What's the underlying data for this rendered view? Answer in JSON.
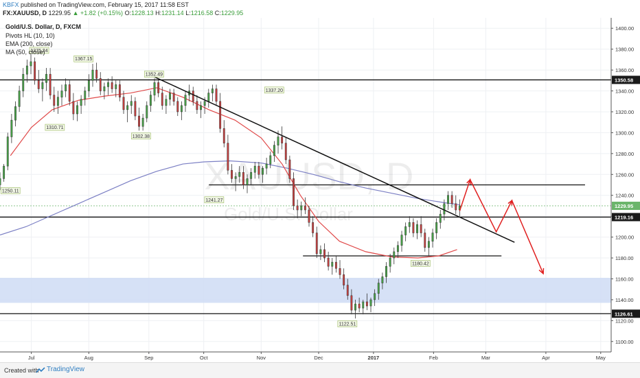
{
  "header": {
    "brand": "KBFX",
    "published": "published on TradingView.com, February 15, 2017 11:58 EST",
    "symbol": "FX:XAUUSD, D",
    "price": "1229.95",
    "change": "▲ +1.82 (+0.15%)",
    "o_label": "O:",
    "o_value": "1228.13",
    "h_label": "H:",
    "h_value": "1231.14",
    "l_label": "L:",
    "l_value": "1216.58",
    "c_label": "C:",
    "c_value": "1229.95"
  },
  "legend": {
    "title": "Gold/U.S. Dollar, D, FXCM",
    "indicator1": "Pivots HL (10, 10)",
    "indicator2": "EMA (200, close)",
    "indicator3": "MA (50, close)"
  },
  "watermark": {
    "symbol": "XAUUSD, D",
    "name": "Gold/U.S. Dollar"
  },
  "footer": {
    "created": "Created with",
    "brand": "TradingView"
  },
  "colors": {
    "ema": "#7b7fc4",
    "ma": "#e04848",
    "candle_up": "#47a447",
    "candle_down": "#c94040",
    "zone": "#cfdcf5",
    "arrow": "#e02020",
    "current_line": "#8ac48a"
  },
  "chart_data": {
    "type": "candlestick",
    "y_axis": {
      "min": 1090,
      "max": 1410,
      "ticks": [
        1100,
        1120,
        1140,
        1160,
        1180,
        1200,
        1220,
        1240,
        1260,
        1280,
        1300,
        1320,
        1340,
        1360,
        1380,
        1400
      ]
    },
    "x_labels": [
      {
        "label": "Jul",
        "t": 12
      },
      {
        "label": "Aug",
        "t": 34
      },
      {
        "label": "Sep",
        "t": 57
      },
      {
        "label": "Oct",
        "t": 78
      },
      {
        "label": "Nov",
        "t": 100
      },
      {
        "label": "Dec",
        "t": 122
      },
      {
        "label": "2017",
        "t": 143
      },
      {
        "label": "Feb",
        "t": 166
      },
      {
        "label": "Mar",
        "t": 186
      },
      {
        "label": "Apr",
        "t": 209
      },
      {
        "label": "May",
        "t": 230
      }
    ],
    "price_labels": [
      {
        "value": 1350.58,
        "label": "1350.58",
        "style": "dark"
      },
      {
        "value": 1229.95,
        "label": "1229.95",
        "style": "green"
      },
      {
        "value": 1219.16,
        "label": "1219.16",
        "style": "dark"
      },
      {
        "value": 1126.61,
        "label": "1126.61",
        "style": "dark"
      }
    ],
    "horizontal_levels": [
      {
        "value": 1350.58,
        "t0": 0,
        "t1": 234
      },
      {
        "value": 1219.16,
        "t0": 0,
        "t1": 234
      },
      {
        "value": 1126.61,
        "t0": 0,
        "t1": 234
      },
      {
        "value": 1250,
        "t0": 80,
        "t1": 224
      },
      {
        "value": 1182,
        "t0": 116,
        "t1": 192
      }
    ],
    "zone": {
      "top": 1161,
      "bottom": 1137
    },
    "trendline": [
      {
        "t": 56,
        "v": 1357
      },
      {
        "t": 197,
        "v": 1195
      }
    ],
    "pivots": [
      {
        "t": 4,
        "v": 1250.11,
        "label": "1250.11",
        "pos": "below"
      },
      {
        "t": 15,
        "v": 1375.24,
        "label": "1375.24",
        "pos": "above"
      },
      {
        "t": 21,
        "v": 1310.71,
        "label": "1310.71",
        "pos": "below"
      },
      {
        "t": 32,
        "v": 1367.15,
        "label": "1367.15",
        "pos": "above"
      },
      {
        "t": 54,
        "v": 1302.38,
        "label": "1302.38",
        "pos": "below"
      },
      {
        "t": 59,
        "v": 1352.49,
        "label": "1352.49",
        "pos": "above"
      },
      {
        "t": 82,
        "v": 1241.27,
        "label": "1241.27",
        "pos": "below"
      },
      {
        "t": 105,
        "v": 1337.2,
        "label": "1337.20",
        "pos": "above"
      },
      {
        "t": 133,
        "v": 1122.51,
        "label": "1122.51",
        "pos": "below"
      },
      {
        "t": 161,
        "v": 1180.42,
        "label": "1180.42",
        "pos": "below"
      }
    ],
    "ema200": [
      [
        0,
        1202
      ],
      [
        10,
        1210
      ],
      [
        20,
        1221
      ],
      [
        30,
        1232
      ],
      [
        40,
        1243
      ],
      [
        50,
        1254
      ],
      [
        60,
        1263
      ],
      [
        70,
        1270
      ],
      [
        78,
        1272
      ],
      [
        88,
        1273
      ],
      [
        100,
        1271
      ],
      [
        110,
        1266
      ],
      [
        120,
        1260
      ],
      [
        130,
        1253
      ],
      [
        140,
        1247
      ],
      [
        150,
        1242
      ],
      [
        160,
        1237
      ],
      [
        170,
        1233
      ],
      [
        176,
        1231
      ]
    ],
    "ma50": [
      [
        4,
        1278
      ],
      [
        12,
        1305
      ],
      [
        20,
        1322
      ],
      [
        30,
        1331
      ],
      [
        40,
        1335
      ],
      [
        50,
        1338
      ],
      [
        60,
        1343
      ],
      [
        70,
        1334
      ],
      [
        80,
        1322
      ],
      [
        90,
        1312
      ],
      [
        100,
        1295
      ],
      [
        108,
        1270
      ],
      [
        115,
        1240
      ],
      [
        122,
        1215
      ],
      [
        130,
        1196
      ],
      [
        140,
        1186
      ],
      [
        150,
        1181
      ],
      [
        160,
        1180
      ],
      [
        168,
        1182
      ],
      [
        175,
        1188
      ]
    ],
    "forecast_arrow": [
      [
        176,
        1225
      ],
      [
        180,
        1255
      ],
      [
        190,
        1205
      ],
      [
        196,
        1235
      ],
      [
        208,
        1165
      ]
    ],
    "candles": [
      [
        0,
        1250,
        1262,
        1245,
        1256
      ],
      [
        1,
        1256,
        1270,
        1253,
        1268
      ],
      [
        2,
        1268,
        1300,
        1264,
        1296
      ],
      [
        3,
        1296,
        1318,
        1290,
        1312
      ],
      [
        4,
        1312,
        1330,
        1306,
        1325
      ],
      [
        5,
        1325,
        1345,
        1320,
        1340
      ],
      [
        6,
        1340,
        1362,
        1334,
        1356
      ],
      [
        7,
        1356,
        1370,
        1348,
        1364
      ],
      [
        8,
        1364,
        1375,
        1356,
        1368
      ],
      [
        9,
        1368,
        1372,
        1346,
        1350
      ],
      [
        10,
        1350,
        1360,
        1338,
        1342
      ],
      [
        11,
        1342,
        1352,
        1330,
        1348
      ],
      [
        12,
        1348,
        1362,
        1340,
        1356
      ],
      [
        13,
        1356,
        1362,
        1332,
        1336
      ],
      [
        14,
        1336,
        1344,
        1320,
        1326
      ],
      [
        15,
        1326,
        1340,
        1318,
        1334
      ],
      [
        16,
        1334,
        1346,
        1326,
        1340
      ],
      [
        17,
        1340,
        1352,
        1334,
        1346
      ],
      [
        18,
        1346,
        1350,
        1326,
        1330
      ],
      [
        19,
        1330,
        1338,
        1312,
        1318
      ],
      [
        20,
        1318,
        1330,
        1311,
        1326
      ],
      [
        21,
        1326,
        1336,
        1318,
        1332
      ],
      [
        22,
        1332,
        1344,
        1326,
        1340
      ],
      [
        23,
        1340,
        1356,
        1334,
        1350
      ],
      [
        24,
        1350,
        1366,
        1344,
        1360
      ],
      [
        25,
        1360,
        1367,
        1348,
        1352
      ],
      [
        26,
        1352,
        1358,
        1336,
        1340
      ],
      [
        27,
        1340,
        1348,
        1332,
        1344
      ],
      [
        28,
        1344,
        1352,
        1336,
        1348
      ],
      [
        29,
        1348,
        1354,
        1338,
        1342
      ],
      [
        30,
        1342,
        1350,
        1334,
        1346
      ],
      [
        31,
        1346,
        1350,
        1330,
        1334
      ],
      [
        32,
        1334,
        1340,
        1318,
        1322
      ],
      [
        33,
        1322,
        1330,
        1310,
        1326
      ],
      [
        34,
        1326,
        1336,
        1318,
        1330
      ],
      [
        35,
        1330,
        1334,
        1312,
        1316
      ],
      [
        36,
        1316,
        1324,
        1302,
        1306
      ],
      [
        37,
        1306,
        1318,
        1302,
        1314
      ],
      [
        38,
        1314,
        1330,
        1310,
        1326
      ],
      [
        39,
        1326,
        1340,
        1320,
        1336
      ],
      [
        40,
        1336,
        1352,
        1330,
        1348
      ],
      [
        41,
        1348,
        1352,
        1334,
        1338
      ],
      [
        42,
        1338,
        1344,
        1322,
        1326
      ],
      [
        43,
        1326,
        1336,
        1318,
        1332
      ],
      [
        44,
        1332,
        1342,
        1326,
        1338
      ],
      [
        45,
        1338,
        1342,
        1326,
        1330
      ],
      [
        46,
        1330,
        1334,
        1316,
        1320
      ],
      [
        47,
        1320,
        1330,
        1312,
        1326
      ],
      [
        48,
        1326,
        1340,
        1320,
        1336
      ],
      [
        49,
        1336,
        1346,
        1330,
        1340
      ],
      [
        50,
        1340,
        1344,
        1326,
        1330
      ],
      [
        51,
        1330,
        1336,
        1318,
        1322
      ],
      [
        52,
        1322,
        1330,
        1314,
        1326
      ],
      [
        53,
        1326,
        1334,
        1318,
        1330
      ],
      [
        54,
        1330,
        1342,
        1324,
        1338
      ],
      [
        55,
        1338,
        1346,
        1330,
        1342
      ],
      [
        56,
        1342,
        1346,
        1326,
        1330
      ],
      [
        57,
        1330,
        1338,
        1300,
        1304
      ],
      [
        58,
        1304,
        1312,
        1286,
        1290
      ],
      [
        59,
        1290,
        1298,
        1260,
        1264
      ],
      [
        60,
        1264,
        1270,
        1252,
        1256
      ],
      [
        61,
        1256,
        1262,
        1244,
        1258
      ],
      [
        62,
        1258,
        1268,
        1252,
        1262
      ],
      [
        63,
        1262,
        1268,
        1246,
        1250
      ],
      [
        64,
        1250,
        1260,
        1242,
        1256
      ],
      [
        65,
        1256,
        1266,
        1250,
        1262
      ],
      [
        66,
        1262,
        1272,
        1256,
        1268
      ],
      [
        67,
        1268,
        1272,
        1256,
        1260
      ],
      [
        68,
        1260,
        1268,
        1252,
        1266
      ],
      [
        69,
        1266,
        1276,
        1260,
        1270
      ],
      [
        70,
        1270,
        1282,
        1266,
        1278
      ],
      [
        71,
        1278,
        1292,
        1272,
        1288
      ],
      [
        72,
        1288,
        1302,
        1280,
        1296
      ],
      [
        73,
        1296,
        1306,
        1284,
        1290
      ],
      [
        74,
        1290,
        1296,
        1270,
        1274
      ],
      [
        75,
        1274,
        1278,
        1252,
        1256
      ],
      [
        76,
        1256,
        1262,
        1226,
        1230
      ],
      [
        77,
        1230,
        1236,
        1218,
        1226
      ],
      [
        78,
        1226,
        1234,
        1220,
        1230
      ],
      [
        79,
        1230,
        1238,
        1222,
        1226
      ],
      [
        80,
        1226,
        1230,
        1210,
        1214
      ],
      [
        81,
        1214,
        1220,
        1200,
        1204
      ],
      [
        82,
        1204,
        1210,
        1180,
        1184
      ],
      [
        83,
        1184,
        1192,
        1178,
        1188
      ],
      [
        84,
        1188,
        1194,
        1176,
        1180
      ],
      [
        85,
        1180,
        1186,
        1168,
        1172
      ],
      [
        86,
        1172,
        1180,
        1164,
        1176
      ],
      [
        87,
        1176,
        1182,
        1166,
        1170
      ],
      [
        88,
        1170,
        1178,
        1160,
        1164
      ],
      [
        89,
        1164,
        1170,
        1150,
        1154
      ],
      [
        90,
        1154,
        1160,
        1140,
        1144
      ],
      [
        91,
        1144,
        1150,
        1126,
        1130
      ],
      [
        92,
        1130,
        1140,
        1122,
        1136
      ],
      [
        93,
        1136,
        1142,
        1128,
        1132
      ],
      [
        94,
        1132,
        1140,
        1126,
        1138
      ],
      [
        95,
        1138,
        1146,
        1130,
        1134
      ],
      [
        96,
        1134,
        1142,
        1128,
        1140
      ],
      [
        97,
        1140,
        1150,
        1134,
        1146
      ],
      [
        98,
        1146,
        1160,
        1140,
        1156
      ],
      [
        99,
        1156,
        1166,
        1150,
        1162
      ],
      [
        100,
        1162,
        1176,
        1156,
        1172
      ],
      [
        101,
        1172,
        1184,
        1166,
        1180
      ],
      [
        102,
        1180,
        1190,
        1174,
        1186
      ],
      [
        103,
        1186,
        1196,
        1180,
        1192
      ],
      [
        104,
        1192,
        1206,
        1186,
        1202
      ],
      [
        105,
        1202,
        1214,
        1196,
        1210
      ],
      [
        106,
        1210,
        1220,
        1204,
        1214
      ],
      [
        107,
        1214,
        1218,
        1200,
        1204
      ],
      [
        108,
        1204,
        1216,
        1198,
        1212
      ],
      [
        109,
        1212,
        1220,
        1200,
        1204
      ],
      [
        110,
        1204,
        1208,
        1186,
        1190
      ],
      [
        111,
        1190,
        1200,
        1182,
        1196
      ],
      [
        112,
        1196,
        1208,
        1190,
        1204
      ],
      [
        113,
        1204,
        1218,
        1198,
        1214
      ],
      [
        114,
        1214,
        1226,
        1208,
        1222
      ],
      [
        115,
        1222,
        1236,
        1216,
        1232
      ],
      [
        116,
        1232,
        1244,
        1226,
        1240
      ],
      [
        117,
        1240,
        1244,
        1228,
        1232
      ],
      [
        118,
        1232,
        1240,
        1222,
        1226
      ],
      [
        119,
        1226,
        1236,
        1220,
        1230
      ]
    ]
  }
}
